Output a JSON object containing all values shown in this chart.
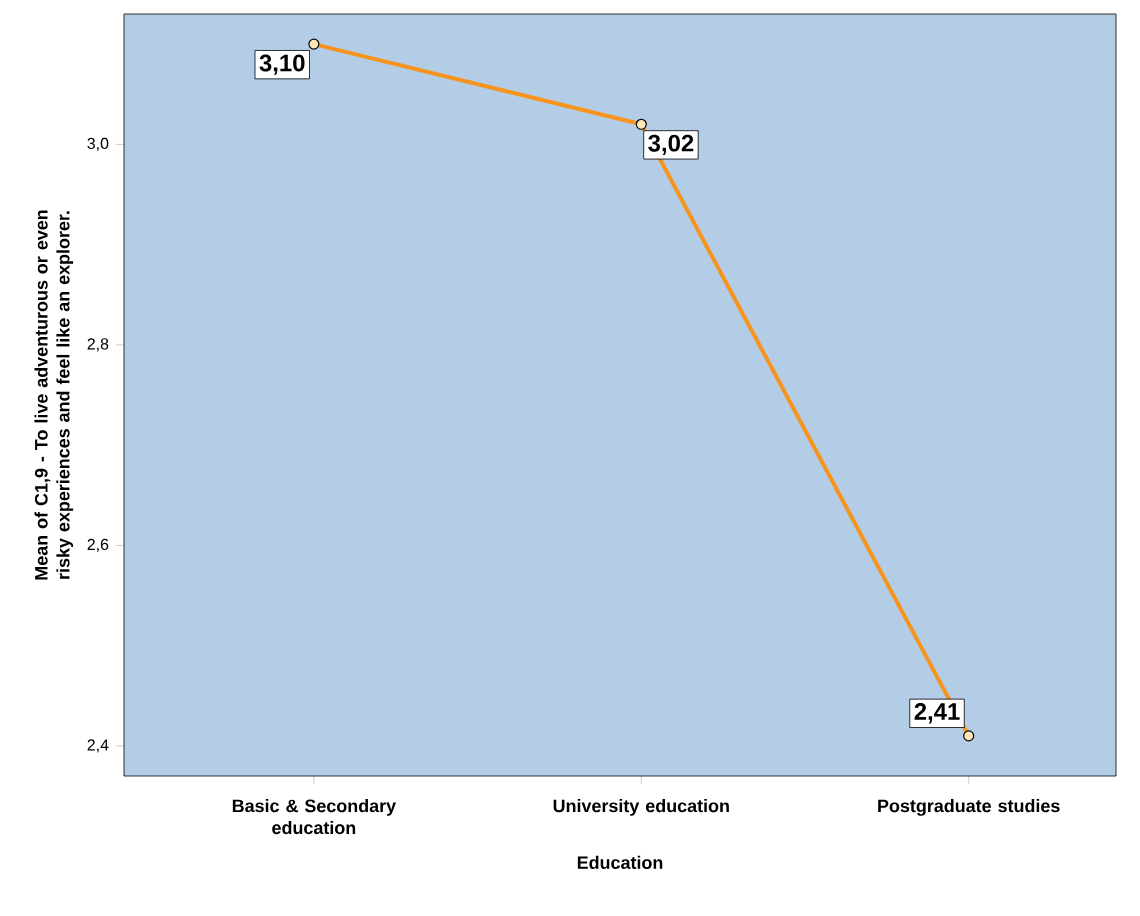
{
  "chart_data": {
    "type": "line",
    "xlabel": "Education",
    "ylabel": "Mean of C1,9 - To live adventurous or even risky experiences and feel like an explorer.",
    "categories": [
      "Basic & Secondary education",
      "University education",
      "Postgraduate studies"
    ],
    "values": [
      3.1,
      3.02,
      2.41
    ],
    "value_labels": [
      "3,10",
      "3,02",
      "2,41"
    ],
    "color": "#f7941d",
    "marker": "circle",
    "line_style": "solid",
    "grid": false,
    "ylim": [
      2.37,
      3.13
    ],
    "yticks": [
      {
        "value": 2.4,
        "label": "2,4"
      },
      {
        "value": 2.6,
        "label": "2,6"
      },
      {
        "value": 2.8,
        "label": "2,8"
      },
      {
        "value": 3.0,
        "label": "3,0"
      }
    ]
  }
}
